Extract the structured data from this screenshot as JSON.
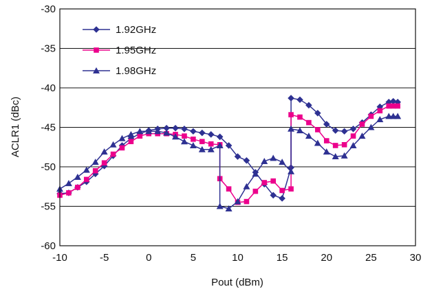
{
  "chart_data": {
    "type": "line",
    "xlabel": "Pout (dBm)",
    "ylabel": "ACLR1 (dBc)",
    "xlim": [
      -10,
      30
    ],
    "ylim": [
      -60,
      -30
    ],
    "xticks": [
      "-10",
      "-5",
      "0",
      "5",
      "10",
      "15",
      "20",
      "25",
      "30"
    ],
    "yticks": [
      "-60",
      "-55",
      "-50",
      "-45",
      "-40",
      "-35",
      "-30"
    ],
    "grid": "horizontal",
    "legend_position": "top-left",
    "series": [
      {
        "name": "1.92GHz",
        "color": "#2e3192",
        "marker": "diamond",
        "x": [
          -10,
          -9,
          -8,
          -7,
          -6,
          -5,
          -4,
          -3,
          -2,
          -1,
          0,
          1,
          2,
          3,
          4,
          5,
          6,
          7,
          8,
          9,
          10,
          11,
          12,
          13,
          14,
          15,
          16,
          16,
          17,
          18,
          19,
          20,
          21,
          22,
          23,
          24,
          25,
          26,
          27,
          27.5,
          28
        ],
        "y": [
          -53.4,
          -53.3,
          -52.6,
          -51.9,
          -50.9,
          -49.9,
          -48.6,
          -47.3,
          -46.4,
          -45.8,
          -45.4,
          -45.2,
          -45.1,
          -45.1,
          -45.2,
          -45.5,
          -45.7,
          -45.9,
          -46.2,
          -47.3,
          -48.7,
          -49.2,
          -50.7,
          -52.2,
          -53.6,
          -54.0,
          -50.1,
          -41.3,
          -41.5,
          -42.2,
          -43.2,
          -44.6,
          -45.4,
          -45.5,
          -45.2,
          -44.4,
          -43.4,
          -42.4,
          -41.8,
          -41.7,
          -41.8
        ]
      },
      {
        "name": "1.95GHz",
        "color": "#ec008c",
        "marker": "square",
        "x": [
          -10,
          -9,
          -8,
          -7,
          -6,
          -5,
          -4,
          -3,
          -2,
          -1,
          0,
          1,
          2,
          3,
          4,
          5,
          6,
          7,
          8,
          8,
          9,
          10,
          11,
          12,
          13,
          14,
          15,
          16,
          16,
          17,
          18,
          19,
          20,
          21,
          22,
          23,
          24,
          25,
          26,
          27,
          27.5,
          28
        ],
        "y": [
          -53.6,
          -53.3,
          -52.6,
          -51.6,
          -50.5,
          -49.5,
          -48.4,
          -47.6,
          -46.8,
          -46.1,
          -45.8,
          -45.8,
          -45.8,
          -45.9,
          -46.1,
          -46.5,
          -46.8,
          -47.1,
          -47.2,
          -51.5,
          -52.8,
          -54.5,
          -54.4,
          -53.1,
          -52.0,
          -51.8,
          -53.0,
          -52.8,
          -43.4,
          -43.7,
          -44.4,
          -45.3,
          -46.7,
          -47.3,
          -47.2,
          -46.1,
          -44.6,
          -43.6,
          -42.9,
          -42.3,
          -42.3,
          -42.3
        ]
      },
      {
        "name": "1.98GHz",
        "color": "#2e3192",
        "marker": "triangle",
        "x": [
          -10,
          -9,
          -8,
          -7,
          -6,
          -5,
          -4,
          -3,
          -2,
          -1,
          0,
          1,
          2,
          3,
          4,
          5,
          6,
          7,
          8,
          8,
          9,
          10,
          11,
          12,
          13,
          14,
          15,
          16,
          16,
          17,
          18,
          19,
          20,
          21,
          22,
          23,
          24,
          25,
          26,
          27,
          27.5,
          28
        ],
        "y": [
          -52.8,
          -52.1,
          -51.3,
          -50.4,
          -49.4,
          -48.1,
          -47.2,
          -46.4,
          -45.9,
          -45.5,
          -45.5,
          -45.5,
          -45.7,
          -46.2,
          -46.8,
          -47.3,
          -47.8,
          -47.8,
          -47.3,
          -55.0,
          -55.3,
          -54.4,
          -52.5,
          -50.9,
          -49.3,
          -48.9,
          -49.4,
          -50.6,
          -45.2,
          -45.4,
          -46.1,
          -47.0,
          -48.1,
          -48.7,
          -48.6,
          -47.3,
          -46.1,
          -45.0,
          -44.0,
          -43.6,
          -43.6,
          -43.6
        ]
      }
    ]
  }
}
